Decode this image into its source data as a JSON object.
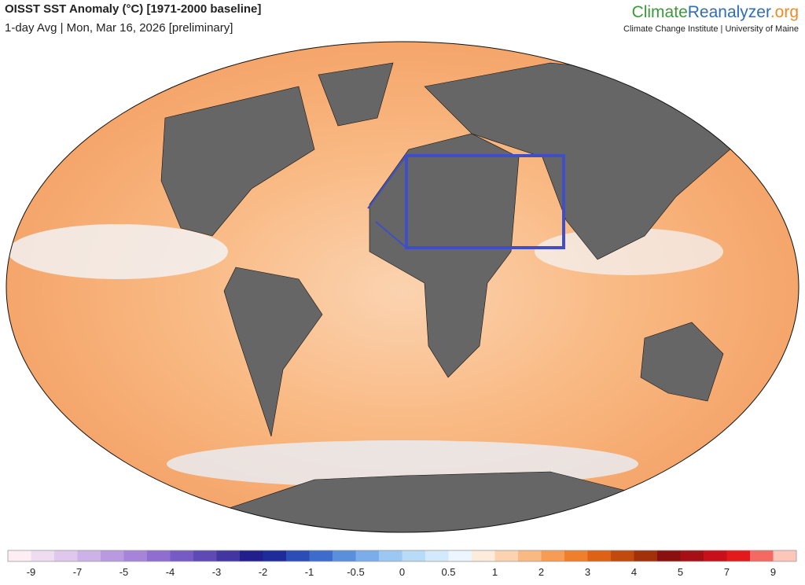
{
  "header": {
    "title": "OISST SST Anomaly (°C) [1971-2000 baseline]",
    "subtitle": "1-day Avg | Mon, Mar 16, 2026 [preliminary]"
  },
  "logo": {
    "part1": "Climate",
    "part2": "Reanalyzer",
    "part3": ".org",
    "tagline": "Climate Change Institute | University of Maine"
  },
  "colorbar": {
    "ticks": [
      -9,
      -7,
      -5,
      -4,
      -3,
      -2,
      -1,
      -0.5,
      0,
      0.5,
      1,
      2,
      3,
      4,
      5,
      7,
      9
    ],
    "colors": [
      "#fdeef3",
      "#eedcf1",
      "#dfc8ec",
      "#cdb2e7",
      "#b99ae1",
      "#a584d9",
      "#8f6ecf",
      "#775bc4",
      "#5f49b4",
      "#4336a1",
      "#221f8c",
      "#1d2c99",
      "#2b4db5",
      "#3d6cca",
      "#5a8fdc",
      "#7badea",
      "#9cc7f2",
      "#b8dbf8",
      "#d3eafc",
      "#ecf6fe",
      "#fdebdc",
      "#fbd3b0",
      "#f9b983",
      "#f79c55",
      "#ef7f2d",
      "#de6216",
      "#c34a0e",
      "#a2300a",
      "#8a0f0f",
      "#a50f15",
      "#c8101a",
      "#e31a1c",
      "#f46a62",
      "#fcc7b9"
    ]
  }
}
